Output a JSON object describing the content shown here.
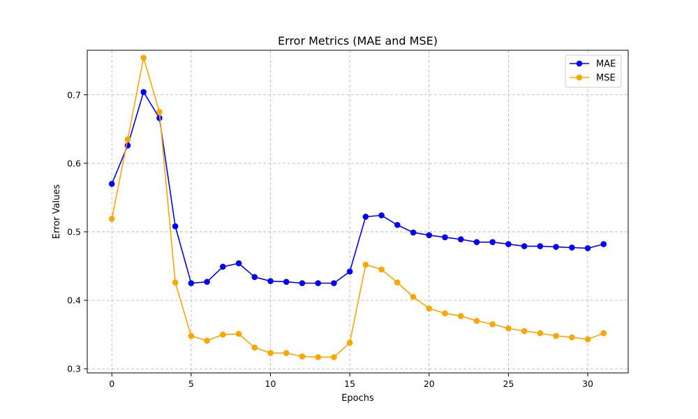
{
  "chart_data": {
    "type": "line",
    "title": "Error Metrics (MAE and MSE)",
    "xlabel": "Epochs",
    "ylabel": "Error Values",
    "xlim": [
      -1.55,
      32.55
    ],
    "ylim": [
      0.294,
      0.765
    ],
    "xticks": [
      0,
      5,
      10,
      15,
      20,
      25,
      30
    ],
    "yticks": [
      0.3,
      0.4,
      0.5,
      0.6,
      0.7
    ],
    "ytick_labels": [
      "0.3",
      "0.4",
      "0.5",
      "0.6",
      "0.7"
    ],
    "grid": true,
    "legend_position": "top-right",
    "x": [
      0,
      1,
      2,
      3,
      4,
      5,
      6,
      7,
      8,
      9,
      10,
      11,
      12,
      13,
      14,
      15,
      16,
      17,
      18,
      19,
      20,
      21,
      22,
      23,
      24,
      25,
      26,
      27,
      28,
      29,
      30,
      31
    ],
    "series": [
      {
        "name": "MAE",
        "color": "#0000ff",
        "marker": "circle",
        "values": [
          0.57,
          0.626,
          0.704,
          0.666,
          0.508,
          0.425,
          0.427,
          0.449,
          0.454,
          0.434,
          0.428,
          0.427,
          0.425,
          0.425,
          0.425,
          0.442,
          0.522,
          0.524,
          0.51,
          0.499,
          0.495,
          0.492,
          0.489,
          0.485,
          0.485,
          0.482,
          0.479,
          0.479,
          0.478,
          0.477,
          0.476,
          0.482
        ]
      },
      {
        "name": "MSE",
        "color": "#ffa500",
        "marker": "circle",
        "values": [
          0.519,
          0.635,
          0.754,
          0.675,
          0.426,
          0.348,
          0.341,
          0.35,
          0.351,
          0.331,
          0.323,
          0.323,
          0.318,
          0.317,
          0.317,
          0.338,
          0.452,
          0.445,
          0.426,
          0.405,
          0.388,
          0.381,
          0.377,
          0.37,
          0.365,
          0.359,
          0.355,
          0.352,
          0.348,
          0.346,
          0.343,
          0.352
        ]
      }
    ]
  }
}
